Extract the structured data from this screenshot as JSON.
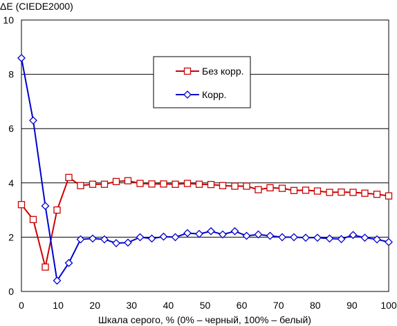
{
  "chart_data": {
    "type": "line",
    "title": "",
    "ylabel": "ΔE (CIEDE2000)",
    "xlabel": "Шкала серого, % (0% – черный, 100% – белый)",
    "xlim": [
      0,
      100
    ],
    "ylim": [
      0,
      10
    ],
    "xticks": [
      0,
      10,
      20,
      30,
      40,
      50,
      60,
      70,
      80,
      90,
      100
    ],
    "yticks": [
      0,
      2,
      4,
      6,
      8,
      10
    ],
    "grid": "horizontal",
    "legend_position": "center-right",
    "x": [
      0,
      3.2,
      6.5,
      9.7,
      12.9,
      16.1,
      19.4,
      22.6,
      25.8,
      29.0,
      32.3,
      35.5,
      38.7,
      41.9,
      45.2,
      48.4,
      51.6,
      54.8,
      58.1,
      61.3,
      64.5,
      67.7,
      71.0,
      74.2,
      77.4,
      80.6,
      83.9,
      87.1,
      90.3,
      93.5,
      96.8,
      100
    ],
    "series": [
      {
        "name": "Без корр.",
        "color": "#cc0000",
        "marker": "square",
        "values": [
          3.2,
          2.65,
          0.9,
          3.0,
          4.2,
          3.9,
          3.95,
          3.95,
          4.05,
          4.08,
          3.98,
          3.96,
          3.96,
          3.95,
          3.98,
          3.95,
          3.94,
          3.9,
          3.88,
          3.88,
          3.75,
          3.82,
          3.8,
          3.72,
          3.73,
          3.7,
          3.65,
          3.66,
          3.65,
          3.62,
          3.58,
          3.52
        ]
      },
      {
        "name": "Корр.",
        "color": "#0000cc",
        "marker": "diamond",
        "values": [
          8.6,
          6.3,
          3.15,
          0.4,
          1.05,
          1.92,
          1.95,
          1.92,
          1.78,
          1.8,
          2.0,
          1.95,
          2.02,
          2.0,
          2.15,
          2.12,
          2.22,
          2.1,
          2.22,
          2.05,
          2.1,
          2.05,
          2.0,
          2.0,
          1.98,
          1.98,
          1.95,
          1.93,
          2.08,
          1.98,
          1.92,
          1.82
        ]
      }
    ]
  }
}
